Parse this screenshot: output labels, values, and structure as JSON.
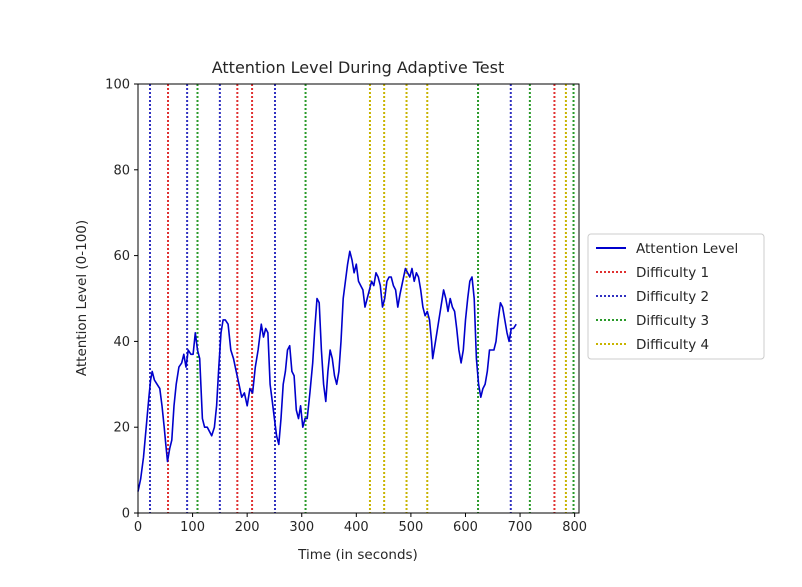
{
  "chart_data": {
    "type": "line",
    "title": "Attention Level During Adaptive Test",
    "xlabel": "Time (in seconds)",
    "ylabel": "Attention Level (0-100)",
    "xlim": [
      0,
      808
    ],
    "ylim": [
      0,
      100
    ],
    "xticks": [
      0,
      100,
      200,
      300,
      400,
      500,
      600,
      700,
      800
    ],
    "yticks": [
      0,
      20,
      40,
      60,
      80,
      100
    ],
    "grid": false,
    "legend_position": "outside-right",
    "series": [
      {
        "name": "Attention Level",
        "color": "#0000cc",
        "points": [
          [
            0,
            5
          ],
          [
            5,
            8
          ],
          [
            10,
            13
          ],
          [
            15,
            20
          ],
          [
            20,
            27
          ],
          [
            23,
            31
          ],
          [
            26,
            33
          ],
          [
            30,
            31
          ],
          [
            35,
            30
          ],
          [
            40,
            29
          ],
          [
            44,
            25
          ],
          [
            48,
            20
          ],
          [
            51,
            16
          ],
          [
            54,
            12
          ],
          [
            58,
            15
          ],
          [
            62,
            17
          ],
          [
            66,
            25
          ],
          [
            70,
            30
          ],
          [
            75,
            34
          ],
          [
            80,
            35
          ],
          [
            84,
            37
          ],
          [
            88,
            34
          ],
          [
            92,
            38
          ],
          [
            97,
            37
          ],
          [
            101,
            37
          ],
          [
            105,
            42
          ],
          [
            109,
            38
          ],
          [
            113,
            36
          ],
          [
            118,
            22
          ],
          [
            122,
            20
          ],
          [
            127,
            20
          ],
          [
            131,
            19
          ],
          [
            135,
            18
          ],
          [
            140,
            20
          ],
          [
            144,
            25
          ],
          [
            148,
            34
          ],
          [
            152,
            42
          ],
          [
            156,
            45
          ],
          [
            160,
            45
          ],
          [
            165,
            44
          ],
          [
            170,
            38
          ],
          [
            175,
            36
          ],
          [
            180,
            33
          ],
          [
            185,
            30
          ],
          [
            190,
            27
          ],
          [
            195,
            28
          ],
          [
            200,
            25
          ],
          [
            205,
            29
          ],
          [
            210,
            28
          ],
          [
            215,
            34
          ],
          [
            220,
            38
          ],
          [
            226,
            44
          ],
          [
            230,
            41
          ],
          [
            234,
            43
          ],
          [
            238,
            42
          ],
          [
            242,
            30
          ],
          [
            246,
            26
          ],
          [
            250,
            22
          ],
          [
            254,
            18
          ],
          [
            258,
            16
          ],
          [
            262,
            22
          ],
          [
            266,
            30
          ],
          [
            270,
            33
          ],
          [
            274,
            38
          ],
          [
            278,
            39
          ],
          [
            282,
            33
          ],
          [
            286,
            32
          ],
          [
            290,
            24
          ],
          [
            294,
            22
          ],
          [
            298,
            25
          ],
          [
            302,
            20
          ],
          [
            306,
            22
          ],
          [
            310,
            22
          ],
          [
            315,
            28
          ],
          [
            320,
            35
          ],
          [
            324,
            43
          ],
          [
            328,
            50
          ],
          [
            332,
            49
          ],
          [
            336,
            38
          ],
          [
            340,
            30
          ],
          [
            344,
            26
          ],
          [
            348,
            33
          ],
          [
            352,
            38
          ],
          [
            356,
            36
          ],
          [
            360,
            32
          ],
          [
            364,
            30
          ],
          [
            368,
            33
          ],
          [
            372,
            40
          ],
          [
            376,
            50
          ],
          [
            380,
            54
          ],
          [
            384,
            58
          ],
          [
            388,
            61
          ],
          [
            392,
            59
          ],
          [
            396,
            56
          ],
          [
            400,
            58
          ],
          [
            404,
            54
          ],
          [
            408,
            53
          ],
          [
            412,
            52
          ],
          [
            416,
            48
          ],
          [
            420,
            50
          ],
          [
            424,
            52
          ],
          [
            428,
            54
          ],
          [
            432,
            53
          ],
          [
            436,
            56
          ],
          [
            440,
            55
          ],
          [
            444,
            53
          ],
          [
            448,
            48
          ],
          [
            452,
            50
          ],
          [
            456,
            54
          ],
          [
            460,
            55
          ],
          [
            464,
            55
          ],
          [
            468,
            53
          ],
          [
            472,
            52
          ],
          [
            476,
            48
          ],
          [
            480,
            51
          ],
          [
            485,
            54
          ],
          [
            490,
            57
          ],
          [
            494,
            56
          ],
          [
            498,
            55
          ],
          [
            502,
            57
          ],
          [
            506,
            54
          ],
          [
            510,
            56
          ],
          [
            514,
            55
          ],
          [
            518,
            52
          ],
          [
            522,
            48
          ],
          [
            526,
            46
          ],
          [
            530,
            47
          ],
          [
            534,
            45
          ],
          [
            538,
            40
          ],
          [
            540,
            36
          ],
          [
            545,
            40
          ],
          [
            550,
            44
          ],
          [
            555,
            48
          ],
          [
            560,
            52
          ],
          [
            564,
            50
          ],
          [
            568,
            47
          ],
          [
            572,
            50
          ],
          [
            576,
            48
          ],
          [
            580,
            47
          ],
          [
            584,
            43
          ],
          [
            588,
            38
          ],
          [
            592,
            35
          ],
          [
            596,
            38
          ],
          [
            600,
            45
          ],
          [
            604,
            50
          ],
          [
            608,
            54
          ],
          [
            612,
            55
          ],
          [
            616,
            50
          ],
          [
            620,
            36
          ],
          [
            624,
            30
          ],
          [
            628,
            27
          ],
          [
            632,
            29
          ],
          [
            636,
            30
          ],
          [
            640,
            33
          ],
          [
            644,
            38
          ],
          [
            648,
            38
          ],
          [
            652,
            38
          ],
          [
            656,
            40
          ],
          [
            660,
            45
          ],
          [
            664,
            49
          ],
          [
            668,
            48
          ],
          [
            672,
            45
          ],
          [
            676,
            42
          ],
          [
            680,
            40
          ],
          [
            684,
            43
          ],
          [
            688,
            43
          ],
          [
            693,
            44
          ]
        ]
      }
    ],
    "vlines": [
      {
        "x": 22,
        "difficulty": 2
      },
      {
        "x": 55,
        "difficulty": 1
      },
      {
        "x": 90,
        "difficulty": 2
      },
      {
        "x": 109,
        "difficulty": 3
      },
      {
        "x": 150,
        "difficulty": 2
      },
      {
        "x": 182,
        "difficulty": 1
      },
      {
        "x": 209,
        "difficulty": 1
      },
      {
        "x": 251,
        "difficulty": 2
      },
      {
        "x": 307,
        "difficulty": 3
      },
      {
        "x": 425,
        "difficulty": 4
      },
      {
        "x": 451,
        "difficulty": 4
      },
      {
        "x": 492,
        "difficulty": 4
      },
      {
        "x": 530,
        "difficulty": 4
      },
      {
        "x": 623,
        "difficulty": 3
      },
      {
        "x": 683,
        "difficulty": 2
      },
      {
        "x": 718,
        "difficulty": 3
      },
      {
        "x": 763,
        "difficulty": 1
      },
      {
        "x": 784,
        "difficulty": 4
      },
      {
        "x": 798,
        "difficulty": 3
      }
    ],
    "legend": [
      {
        "label": "Attention Level",
        "style": "solid",
        "color": "#0000cc"
      },
      {
        "label": "Difficulty 1",
        "style": "dotted",
        "color": "#e03030"
      },
      {
        "label": "Difficulty 2",
        "style": "dotted",
        "color": "#3030c0"
      },
      {
        "label": "Difficulty 3",
        "style": "dotted",
        "color": "#2a9a2a"
      },
      {
        "label": "Difficulty 4",
        "style": "dotted",
        "color": "#c8b400"
      }
    ],
    "difficulty_colors": {
      "1": "#e03030",
      "2": "#3030c0",
      "3": "#2a9a2a",
      "4": "#c8b400"
    }
  }
}
